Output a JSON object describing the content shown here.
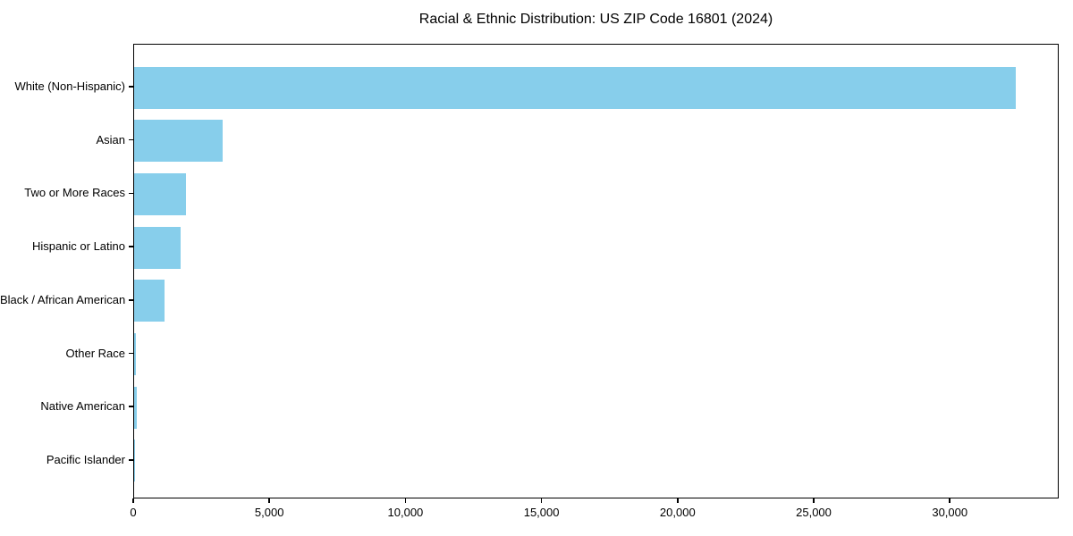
{
  "page": {
    "background": "#ffffff"
  },
  "chart_data": {
    "type": "bar",
    "orientation": "horizontal",
    "title": "Racial & Ethnic Distribution: US ZIP Code 16801 (2024)",
    "categories": [
      "White (Non-Hispanic)",
      "Asian",
      "Two or More Races",
      "Hispanic or Latino",
      "Black / African American",
      "Other Race",
      "Native American",
      "Pacific Islander"
    ],
    "values": [
      32460,
      3260,
      1910,
      1710,
      1120,
      75,
      85,
      10
    ],
    "xlabel": "",
    "ylabel": "",
    "xlim": [
      0,
      34000
    ],
    "x_ticks": [
      0,
      5000,
      10000,
      15000,
      20000,
      25000,
      30000
    ],
    "x_tick_labels": [
      "0",
      "5,000",
      "10,000",
      "15,000",
      "20,000",
      "25,000",
      "30,000"
    ],
    "bar_color": "#87CEEB",
    "axis_color": "#000000",
    "text_color": "#000000",
    "grid": false,
    "legend": "none"
  }
}
